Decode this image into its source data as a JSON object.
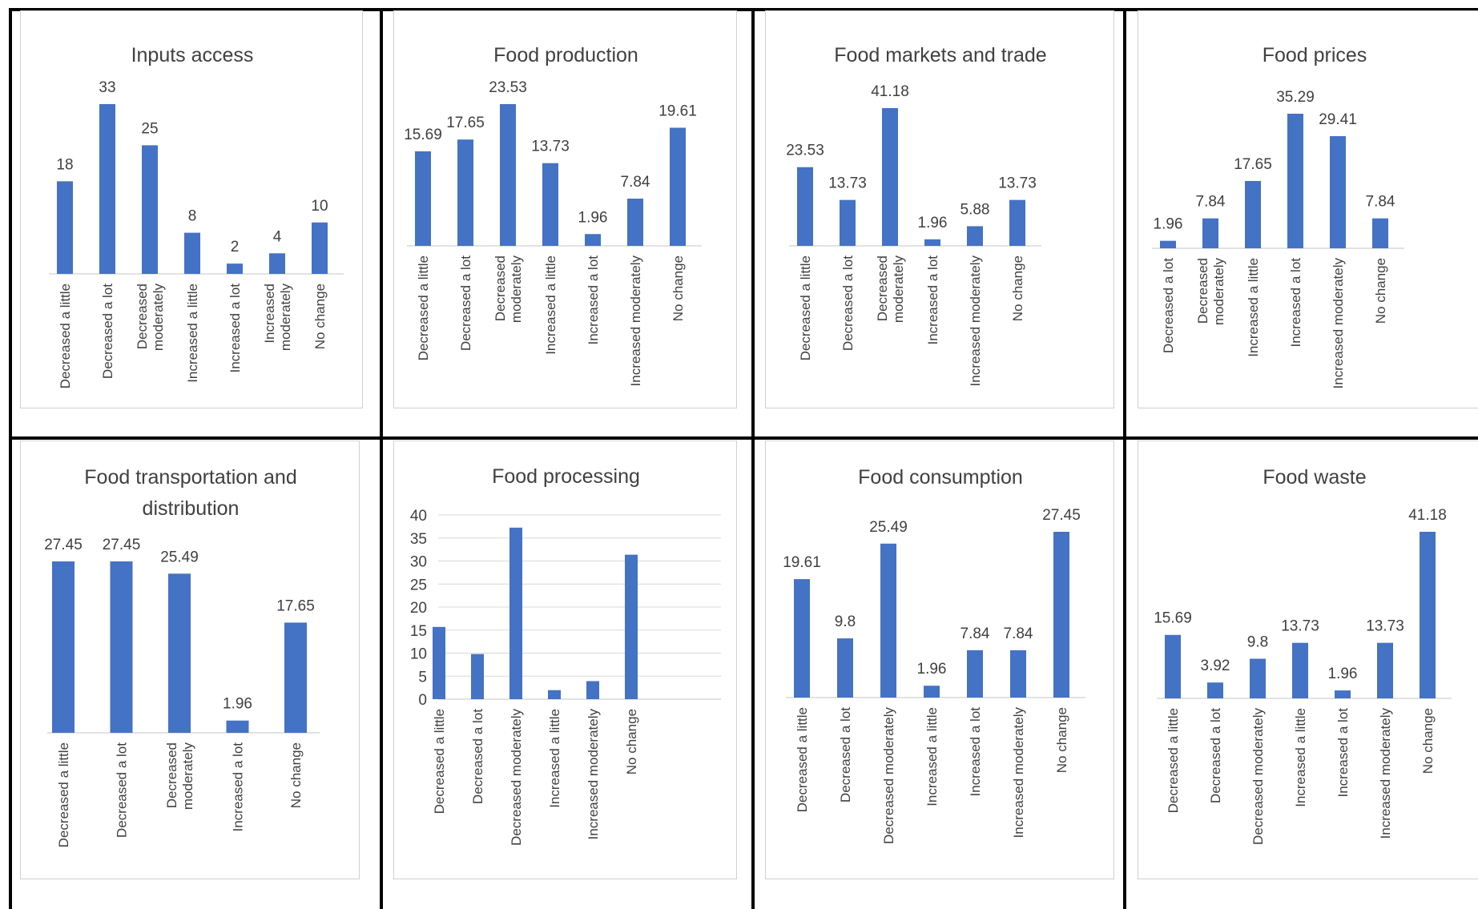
{
  "colors": {
    "bar": "#4472c4",
    "axis": "#d9d9d9",
    "text": "#404040",
    "frame": "#000000"
  },
  "chart_data": [
    {
      "type": "bar",
      "title": [
        "Inputs access"
      ],
      "categories": [
        [
          "Decreased a little"
        ],
        [
          "Decreased a lot"
        ],
        [
          "Decreased",
          "moderately"
        ],
        [
          "Increased a little"
        ],
        [
          "Increased a lot"
        ],
        [
          "Increased",
          "moderately"
        ],
        [
          "No change"
        ]
      ],
      "values": [
        18,
        33,
        25,
        8,
        2,
        4,
        10
      ],
      "labels": [
        "18",
        "33",
        "25",
        "8",
        "2",
        "4",
        "10"
      ],
      "show_y_axis": false
    },
    {
      "type": "bar",
      "title": [
        "Food production"
      ],
      "categories": [
        [
          "Decreased a little"
        ],
        [
          "Decreased a lot"
        ],
        [
          "Decreased",
          "moderately"
        ],
        [
          "Increased a little"
        ],
        [
          "Increased a lot"
        ],
        [
          "Increased moderately"
        ],
        [
          "No change"
        ]
      ],
      "values": [
        15.69,
        17.65,
        23.53,
        13.73,
        1.96,
        7.84,
        19.61
      ],
      "labels": [
        "15.69",
        "17.65",
        "23.53",
        "13.73",
        "1.96",
        "7.84",
        "19.61"
      ],
      "show_y_axis": false
    },
    {
      "type": "bar",
      "title": [
        "Food markets and trade"
      ],
      "categories": [
        [
          "Decreased a little"
        ],
        [
          "Decreased a lot"
        ],
        [
          "Decreased",
          "moderately"
        ],
        [
          "Increased a lot"
        ],
        [
          "Increased moderately"
        ],
        [
          "No change"
        ]
      ],
      "values": [
        23.53,
        13.73,
        41.18,
        1.96,
        5.88,
        13.73
      ],
      "labels": [
        "23.53",
        "13.73",
        "41.18",
        "1.96",
        "5.88",
        "13.73"
      ],
      "show_y_axis": false
    },
    {
      "type": "bar",
      "title": [
        "Food prices"
      ],
      "categories": [
        [
          "Decreased a lot"
        ],
        [
          "Decreased",
          "moderately"
        ],
        [
          "Increased a little"
        ],
        [
          "Increased a lot"
        ],
        [
          "Increased moderately"
        ],
        [
          "No change"
        ]
      ],
      "values": [
        1.96,
        7.84,
        17.65,
        35.29,
        29.41,
        7.84
      ],
      "labels": [
        "1.96",
        "7.84",
        "17.65",
        "35.29",
        "29.41",
        "7.84"
      ],
      "show_y_axis": false
    },
    {
      "type": "bar",
      "title": [
        "Food transportation and",
        "distribution"
      ],
      "categories": [
        [
          "Decreased a little"
        ],
        [
          "Decreased a lot"
        ],
        [
          "Decreased",
          "moderately"
        ],
        [
          "Increased a lot"
        ],
        [
          "No change"
        ]
      ],
      "values": [
        27.45,
        27.45,
        25.49,
        1.96,
        17.65
      ],
      "labels": [
        "27.45",
        "27.45",
        "25.49",
        "1.96",
        "17.65"
      ],
      "show_y_axis": false
    },
    {
      "type": "bar",
      "title": [
        "Food processing"
      ],
      "categories": [
        [
          "Decreased a little"
        ],
        [
          "Decreased a lot"
        ],
        [
          "Decreased moderately"
        ],
        [
          "Increased a little"
        ],
        [
          "Increased moderately"
        ],
        [
          "No change"
        ]
      ],
      "values": [
        15.69,
        9.8,
        37.25,
        1.96,
        3.92,
        31.37
      ],
      "labels": [],
      "show_y_axis": true,
      "ylim": [
        0,
        40
      ],
      "yticks": [
        "0",
        "5",
        "10",
        "15",
        "20",
        "25",
        "30",
        "35",
        "40"
      ],
      "grid": true
    },
    {
      "type": "bar",
      "title": [
        "Food consumption"
      ],
      "categories": [
        [
          "Decreased a little"
        ],
        [
          "Decreased a lot"
        ],
        [
          "Decreased moderately"
        ],
        [
          "Increased a little"
        ],
        [
          "Increased a lot"
        ],
        [
          "Increased moderately"
        ],
        [
          "No change"
        ]
      ],
      "values": [
        19.61,
        9.8,
        25.49,
        1.96,
        7.84,
        7.84,
        27.45
      ],
      "labels": [
        "19.61",
        "9.8",
        "25.49",
        "1.96",
        "7.84",
        "7.84",
        "27.45"
      ],
      "show_y_axis": false
    },
    {
      "type": "bar",
      "title": [
        "Food waste"
      ],
      "categories": [
        [
          "Decreased a little"
        ],
        [
          "Decreased a lot"
        ],
        [
          "Decreased moderately"
        ],
        [
          "Increased a little"
        ],
        [
          "Increased a lot"
        ],
        [
          "Increased moderately"
        ],
        [
          "No change"
        ]
      ],
      "values": [
        15.69,
        3.92,
        9.8,
        13.73,
        1.96,
        13.73,
        41.18
      ],
      "labels": [
        "15.69",
        "3.92",
        "9.8",
        "13.73",
        "1.96",
        "13.73",
        "41.18"
      ],
      "show_y_axis": false
    }
  ]
}
